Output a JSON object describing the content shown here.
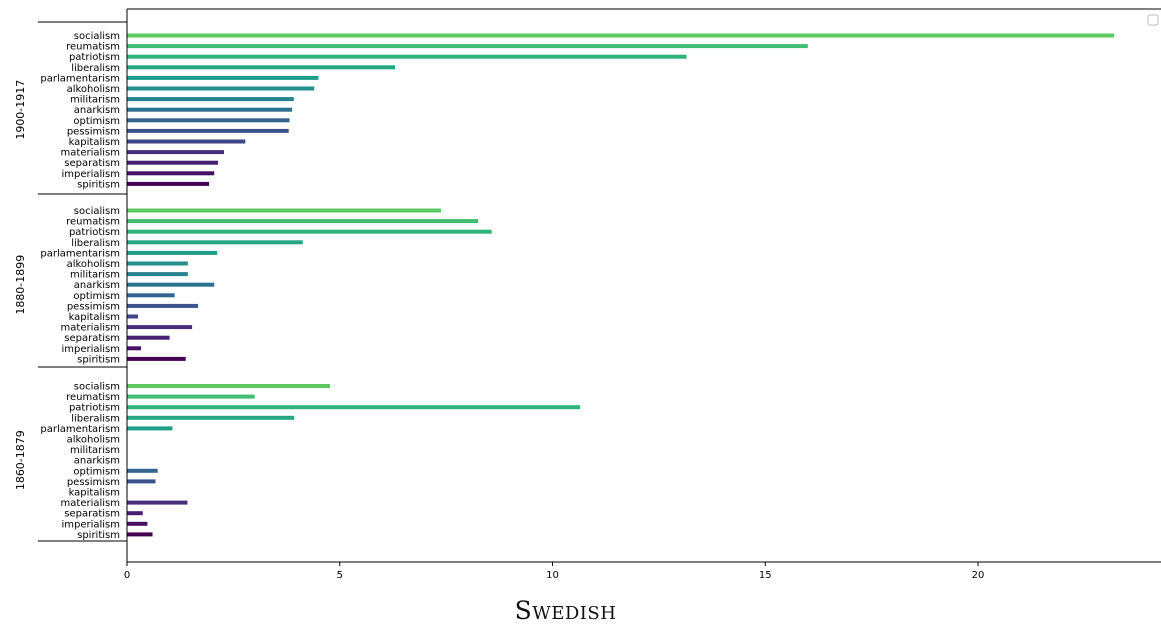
{
  "caption": "Swedish",
  "chart_data": {
    "type": "bar",
    "orientation": "horizontal",
    "categories": [
      "socialism",
      "reumatism",
      "patriotism",
      "liberalism",
      "parlamentarism",
      "alkoholism",
      "militarism",
      "anarkism",
      "optimism",
      "pessimism",
      "kapitalism",
      "materialism",
      "separatism",
      "imperialism",
      "spiritism"
    ],
    "colors": [
      "#5ec962",
      "#40bd72",
      "#2fb47c",
      "#24a884",
      "#1f9e89",
      "#218f8d",
      "#26828e",
      "#2c728e",
      "#32648e",
      "#3b528b",
      "#414487",
      "#472d7b",
      "#481f70",
      "#471063",
      "#440154"
    ],
    "groups": [
      {
        "label": "1900-1917",
        "values": [
          23.2,
          16.0,
          13.15,
          6.3,
          4.5,
          4.4,
          3.92,
          3.88,
          3.82,
          3.8,
          2.78,
          2.28,
          2.14,
          2.05,
          1.93
        ]
      },
      {
        "label": "1880-1899",
        "values": [
          7.38,
          8.25,
          8.57,
          4.13,
          2.12,
          1.43,
          1.43,
          2.05,
          1.12,
          1.67,
          0.26,
          1.53,
          1.0,
          0.33,
          1.38
        ]
      },
      {
        "label": "1860-1879",
        "values": [
          4.77,
          3.0,
          10.65,
          3.93,
          1.07,
          0,
          0,
          0,
          0.72,
          0.67,
          0,
          1.42,
          0.37,
          0.48,
          0.6
        ]
      }
    ],
    "xticks": [
      0,
      5,
      10,
      15,
      20
    ],
    "xlim": [
      0,
      24.3
    ],
    "xlabel": "",
    "ylabel": "",
    "grid": false,
    "legend": "top-right"
  }
}
